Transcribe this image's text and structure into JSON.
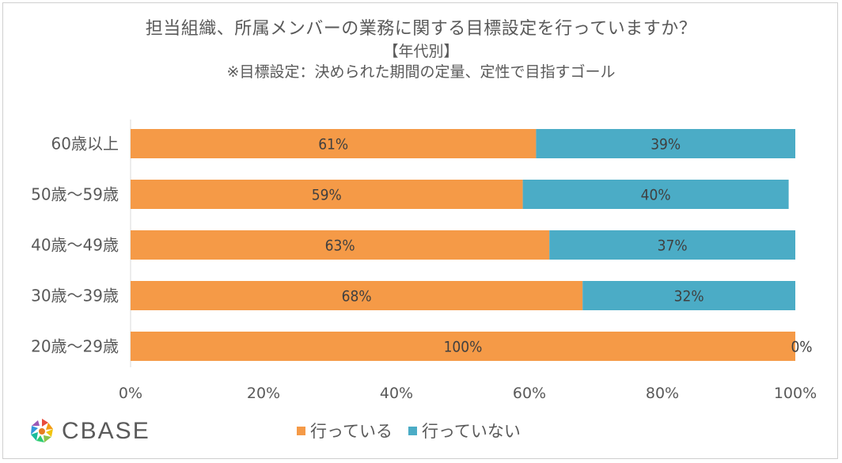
{
  "chart_data": {
    "type": "bar",
    "orientation": "horizontal",
    "stacked": true,
    "title": "担当組織、所属メンバーの業務に関する目標設定を行っていますか？",
    "subtitle": "【年代別】",
    "note": "※目標設定：決められた期間の定量、定性で目指すゴール",
    "categories": [
      "60歳以上",
      "50歳～59歳",
      "40歳～49歳",
      "30歳～39歳",
      "20歳～29歳"
    ],
    "series": [
      {
        "name": "行っている",
        "color": "#F59A47",
        "values": [
          61,
          59,
          63,
          68,
          100
        ],
        "labels": [
          "61%",
          "59%",
          "63%",
          "68%",
          "100%"
        ]
      },
      {
        "name": "行っていない",
        "color": "#4BACC6",
        "values": [
          39,
          40,
          37,
          32,
          0
        ],
        "labels": [
          "39%",
          "40%",
          "37%",
          "32%",
          "0%"
        ]
      }
    ],
    "xlim": [
      0,
      100
    ],
    "xticks": [
      "0%",
      "20%",
      "40%",
      "60%",
      "80%",
      "100%"
    ],
    "legend": "bottom",
    "grid": false
  },
  "logo": {
    "text": "CBASE"
  }
}
